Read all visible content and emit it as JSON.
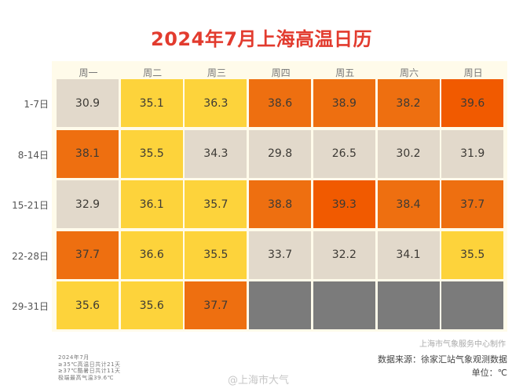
{
  "chart_data": {
    "type": "heatmap",
    "title": "2024年7月上海高温日历",
    "columns": [
      "周一",
      "周二",
      "周三",
      "周四",
      "周五",
      "周六",
      "周日"
    ],
    "rows": [
      "1-7日",
      "8-14日",
      "15-21日",
      "22-28日",
      "29-31日"
    ],
    "values": [
      [
        30.9,
        35.1,
        36.3,
        38.6,
        38.9,
        38.2,
        39.6
      ],
      [
        38.1,
        35.5,
        34.3,
        29.8,
        26.5,
        30.2,
        31.9
      ],
      [
        32.9,
        36.1,
        35.7,
        38.8,
        39.3,
        38.4,
        37.7
      ],
      [
        37.7,
        36.6,
        35.5,
        33.7,
        32.2,
        34.1,
        35.5
      ],
      [
        35.6,
        35.6,
        37.7,
        null,
        null,
        null,
        null
      ]
    ],
    "color_scale": [
      {
        "below": 35,
        "color": "#e2d9cb"
      },
      {
        "below": 37,
        "color": "#fdd33b"
      },
      {
        "below": 39,
        "color": "#ee6f10"
      },
      {
        "below": 100,
        "color": "#f15a00"
      }
    ],
    "empty_color": "#7b7b7b"
  },
  "notes": {
    "month": "2024年7月",
    "hot_days": "≥35℃高温日共计21天",
    "very_hot_days": "≥37℃酷暑日共计11天",
    "max_temp": "极端最高气温39.6℃"
  },
  "credit": "上海市气象服务中心制作",
  "source": "数据来源：徐家汇站气象观测数据",
  "unit": "单位：℃",
  "watermark": "@上海市大气"
}
